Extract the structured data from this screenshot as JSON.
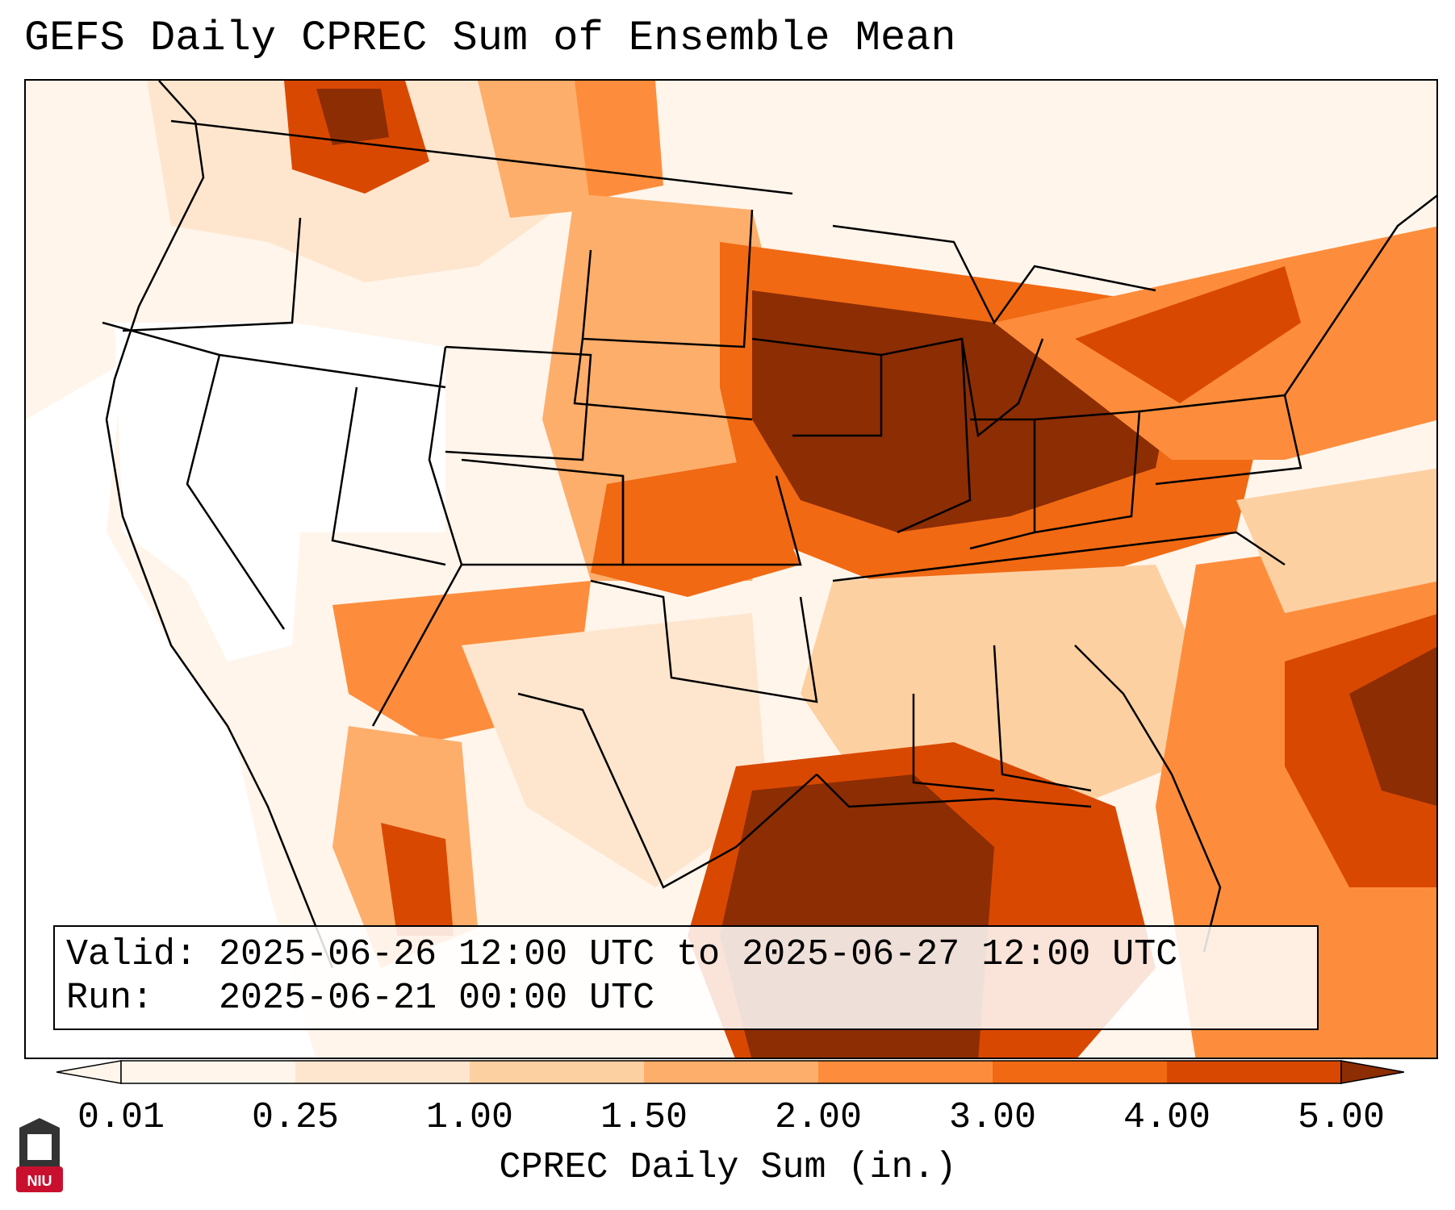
{
  "title": "GEFS Daily CPREC Sum of Ensemble Mean",
  "info": {
    "valid_label": "Valid:",
    "valid_value": "2025-06-26 12:00 UTC to 2025-06-27 12:00 UTC",
    "run_label": "Run:",
    "run_value": "2025-06-21 00:00 UTC"
  },
  "colorbar": {
    "label": "CPREC Daily Sum (in.)",
    "ticks": [
      "0.01",
      "0.25",
      "1.00",
      "1.50",
      "2.00",
      "3.00",
      "4.00",
      "5.00"
    ],
    "colors": [
      "#fff5eb",
      "#fee6ce",
      "#fdd0a2",
      "#fdae6b",
      "#fd8d3c",
      "#f16913",
      "#d94801",
      "#8c2d04"
    ],
    "extend": "both"
  },
  "logo": {
    "text": "NIU",
    "colors": {
      "tower": "#333333",
      "badge": "#c8102e"
    }
  },
  "map": {
    "region": "Contiguous United States",
    "colors": {
      "dry": "#ffffff",
      "background": "#fff5eb",
      "outline": "#000000"
    }
  }
}
